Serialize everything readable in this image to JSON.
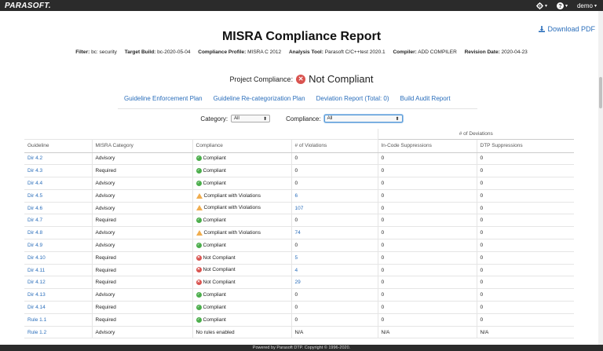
{
  "topbar": {
    "logo": "PARASOFT.",
    "gear_icon": "gear-icon",
    "help_icon": "help-icon",
    "user": "demo",
    "caret": "▾"
  },
  "download": {
    "icon": "download-icon",
    "label": "Download PDF"
  },
  "title": "MISRA Compliance Report",
  "meta": {
    "filter_label": "Filter:",
    "filter": "bc: security",
    "build_label": "Target Build:",
    "build": "bc-2020-05-04",
    "profile_label": "Compliance Profile:",
    "profile": "MISRA C 2012",
    "tool_label": "Analysis Tool:",
    "tool": "Parasoft C/C++test 2020.1",
    "compiler_label": "Compiler:",
    "compiler": "ADD COMPILER",
    "revision_label": "Revision Date:",
    "revision": "2020-04-23"
  },
  "project": {
    "label": "Project Compliance:",
    "status": "Not Compliant"
  },
  "links": [
    "Guideline Enforcement Plan",
    "Guideline Re-categorization Plan",
    "Deviation Report (Total: 0)",
    "Build Audit Report"
  ],
  "filters": {
    "category_label": "Category:",
    "category_value": "All",
    "compliance_label": "Compliance:",
    "compliance_value": "All"
  },
  "table": {
    "group_header": "# of Deviations",
    "headers": [
      "Guideline",
      "MISRA Category",
      "Compliance",
      "# of Violations",
      "In-Code Suppressions",
      "DTP Suppressions"
    ],
    "rows": [
      {
        "g": "Dir 4.2",
        "c": "Advisory",
        "s": "Compliant",
        "v": "0",
        "i": "0",
        "d": "0"
      },
      {
        "g": "Dir 4.3",
        "c": "Required",
        "s": "Compliant",
        "v": "0",
        "i": "0",
        "d": "0"
      },
      {
        "g": "Dir 4.4",
        "c": "Advisory",
        "s": "Compliant",
        "v": "0",
        "i": "0",
        "d": "0"
      },
      {
        "g": "Dir 4.5",
        "c": "Advisory",
        "s": "Compliant with Violations",
        "v": "6",
        "i": "0",
        "d": "0"
      },
      {
        "g": "Dir 4.6",
        "c": "Advisory",
        "s": "Compliant with Violations",
        "v": "107",
        "i": "0",
        "d": "0"
      },
      {
        "g": "Dir 4.7",
        "c": "Required",
        "s": "Compliant",
        "v": "0",
        "i": "0",
        "d": "0"
      },
      {
        "g": "Dir 4.8",
        "c": "Advisory",
        "s": "Compliant with Violations",
        "v": "74",
        "i": "0",
        "d": "0"
      },
      {
        "g": "Dir 4.9",
        "c": "Advisory",
        "s": "Compliant",
        "v": "0",
        "i": "0",
        "d": "0"
      },
      {
        "g": "Dir 4.10",
        "c": "Required",
        "s": "Not Compliant",
        "v": "5",
        "i": "0",
        "d": "0"
      },
      {
        "g": "Dir 4.11",
        "c": "Required",
        "s": "Not Compliant",
        "v": "4",
        "i": "0",
        "d": "0"
      },
      {
        "g": "Dir 4.12",
        "c": "Required",
        "s": "Not Compliant",
        "v": "29",
        "i": "0",
        "d": "0"
      },
      {
        "g": "Dir 4.13",
        "c": "Advisory",
        "s": "Compliant",
        "v": "0",
        "i": "0",
        "d": "0"
      },
      {
        "g": "Dir 4.14",
        "c": "Required",
        "s": "Compliant",
        "v": "0",
        "i": "0",
        "d": "0"
      },
      {
        "g": "Rule 1.1",
        "c": "Required",
        "s": "Compliant",
        "v": "0",
        "i": "0",
        "d": "0"
      },
      {
        "g": "Rule 1.2",
        "c": "Advisory",
        "s": "No rules enabled",
        "v": "N/A",
        "i": "N/A",
        "d": "N/A"
      }
    ]
  },
  "footer": "Powered by Parasoft DTP. Copyright © 1996-2020.",
  "colors": {
    "link": "#2a6ebb",
    "ok": "#4cae4c",
    "warn": "#f0ad4e",
    "error": "#d9534f"
  }
}
